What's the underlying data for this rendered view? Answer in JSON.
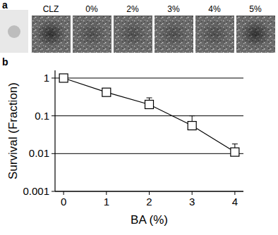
{
  "figure": {
    "panel_labels": [
      "a",
      "b"
    ],
    "image_labels": [
      "CLZ",
      "0%",
      "2%",
      "3%",
      "4%",
      "5%"
    ]
  },
  "chart_data": {
    "type": "line",
    "x": [
      0,
      1,
      2,
      3,
      4
    ],
    "values": [
      1,
      0.42,
      0.2,
      0.055,
      0.011
    ],
    "errors": [
      0,
      0.08,
      0.1,
      0.045,
      0.007
    ],
    "xlabel": "BA (%)",
    "ylabel": "Survival (Fraction)",
    "xlim": [
      -0.2,
      4.2
    ],
    "ylim": [
      0.001,
      1.6
    ],
    "xticks": [
      0,
      1,
      2,
      3,
      4
    ],
    "yticks": [
      1,
      0.1,
      0.01,
      0.001
    ],
    "log": "y",
    "grid": true,
    "color": "#000000",
    "marker": "square"
  }
}
